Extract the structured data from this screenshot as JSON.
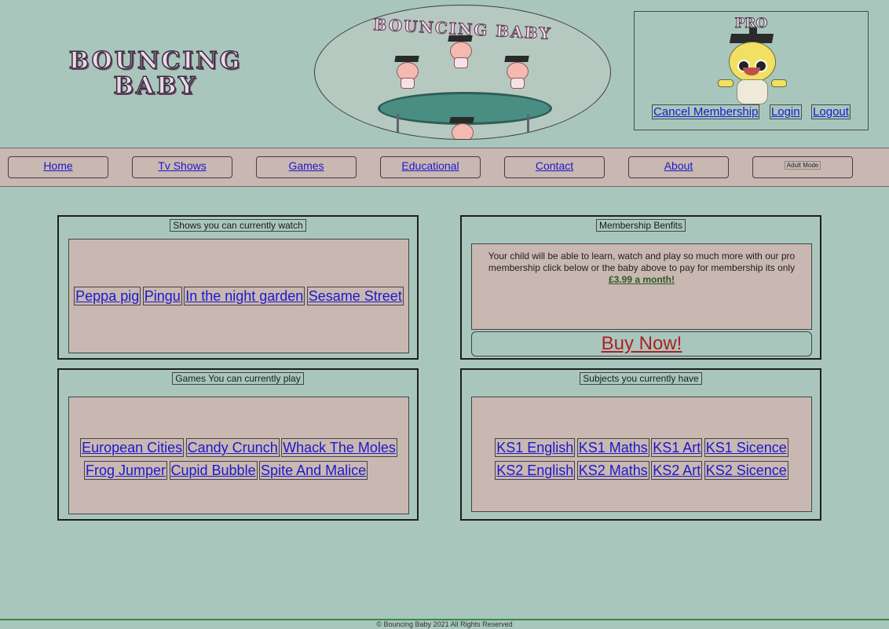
{
  "logo": {
    "line1": "BOUNCING",
    "line2": "BABY"
  },
  "hero": {
    "title": "BOUNCING BABY"
  },
  "pro": {
    "label": "PRO",
    "links": [
      "Cancel Membership",
      "Login",
      "Logout"
    ]
  },
  "nav": {
    "items": [
      "Home",
      "Tv Shows",
      "Games",
      "Educational",
      "Contact",
      "About"
    ],
    "adult_mode": "Adult Mode"
  },
  "shows": {
    "title": "Shows you can currently watch",
    "items": [
      "Peppa pig",
      "Pingu",
      "In the night garden",
      "Sesame Street"
    ]
  },
  "membership": {
    "title": "Membership Benfits",
    "text": "Your child will be able to learn, watch and play so much more with our pro membership click below or the baby above to pay for membership its only ",
    "price": "£3.99 a month!",
    "buy_label": "Buy Now!"
  },
  "games": {
    "title": "Games You can currently play",
    "row1": [
      "European Cities",
      "Candy Crunch",
      "Whack The Moles"
    ],
    "row2": [
      "Frog Jumper",
      "Cupid Bubble",
      "Spite And Malice"
    ]
  },
  "subjects": {
    "title": "Subjects you currently have",
    "row1": [
      "KS1 English",
      "KS1 Maths",
      "KS1 Art",
      "KS1 Sicence"
    ],
    "row2": [
      "KS2 English",
      "KS2 Maths",
      "KS2 Art",
      "KS2 Sicence"
    ]
  },
  "footer": {
    "text": "© Bouncing Baby 2021 All Rights Reserved"
  },
  "colors": {
    "page_bg": "#a9c6bd",
    "panel_inner": "#c9b7b2",
    "link": "#1a1acc",
    "buy": "#b02020"
  }
}
